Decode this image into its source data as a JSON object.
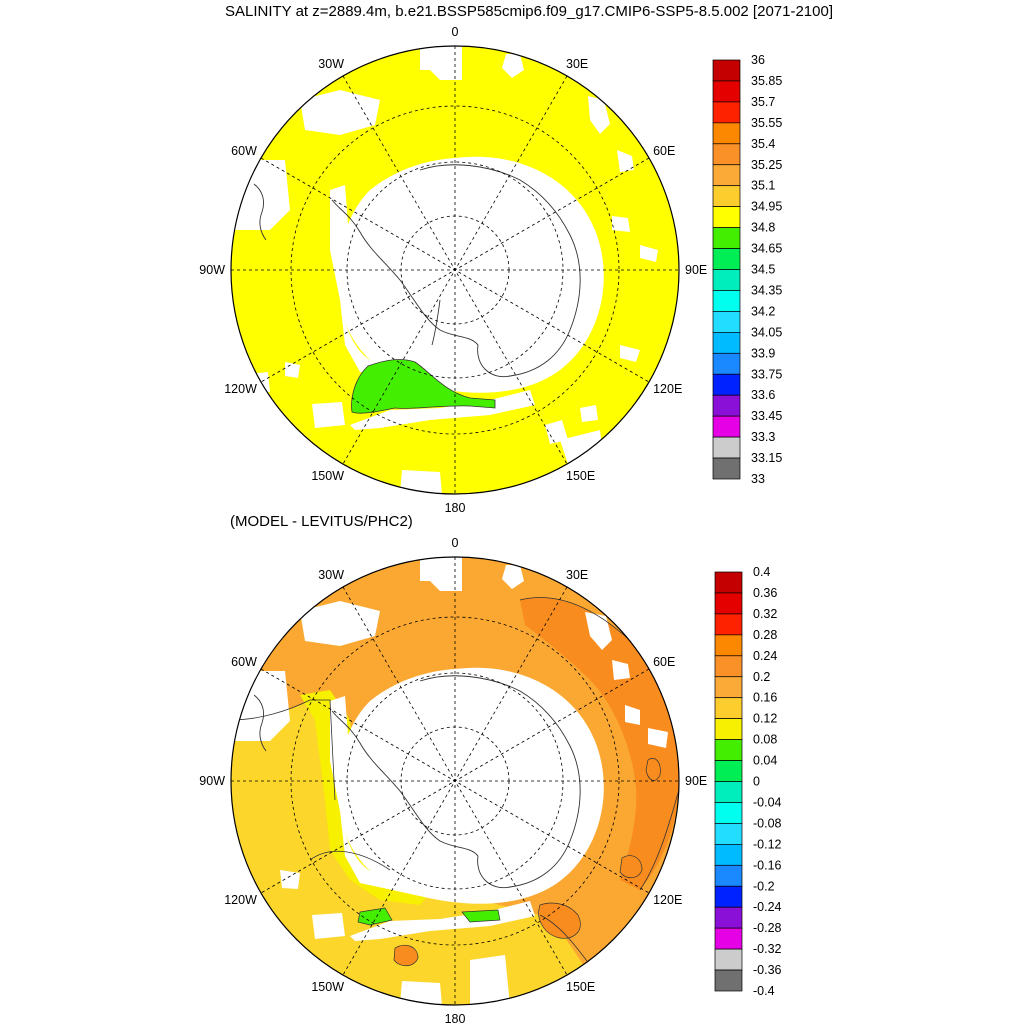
{
  "main_title": "SALINITY at z=2889.4m, b.e21.BSSP585cmip6.f09_g17.CMIP6-SSP5-8.5.002 [2071-2100]",
  "sub_title": "(MODEL - LEVITUS/PHC2)",
  "longitude_labels": [
    "0",
    "30E",
    "60E",
    "90E",
    "120E",
    "150E",
    "180",
    "150W",
    "120W",
    "90W",
    "60W",
    "30W"
  ],
  "colors": {
    "land": "#ffffff",
    "ocean_salinity": "#ffff00",
    "low_salinity": "#44ee00",
    "anomaly_main": "#fba832",
    "anomaly_high": "#f98c1e",
    "anomaly_low": "#fcd62a",
    "anomaly_yellow": "#f7f000",
    "anomaly_green": "#44ee00",
    "coast": "#333333",
    "grid": "#000000"
  },
  "map_top": {
    "colorbar_labels": [
      "36",
      "35.85",
      "35.7",
      "35.55",
      "35.4",
      "35.25",
      "35.1",
      "34.95",
      "34.8",
      "34.65",
      "34.5",
      "34.35",
      "34.2",
      "34.05",
      "33.9",
      "33.75",
      "33.6",
      "33.45",
      "33.3",
      "33.15",
      "33"
    ],
    "colorbar_colors": [
      "#c40000",
      "#e50000",
      "#ff2200",
      "#fb8800",
      "#f99128",
      "#fbaa38",
      "#fdcd2e",
      "#ffff00",
      "#44ee00",
      "#00ee55",
      "#00eebb",
      "#00ffee",
      "#22ddff",
      "#00bbff",
      "#1a88ff",
      "#0022ff",
      "#8a10d8",
      "#e600e6",
      "#cccccc",
      "#707070"
    ]
  },
  "map_bottom": {
    "colorbar_labels": [
      "0.4",
      "0.36",
      "0.32",
      "0.28",
      "0.24",
      "0.2",
      "0.16",
      "0.12",
      "0.08",
      "0.04",
      "0",
      "-0.04",
      "-0.08",
      "-0.12",
      "-0.16",
      "-0.2",
      "-0.24",
      "-0.28",
      "-0.32",
      "-0.36",
      "-0.4"
    ],
    "colorbar_colors": [
      "#c40000",
      "#e50000",
      "#ff2200",
      "#fb8800",
      "#f99128",
      "#fbaa38",
      "#fdcd2e",
      "#f7f000",
      "#44ee00",
      "#00ee55",
      "#00eebb",
      "#00ffee",
      "#22ddff",
      "#00bbff",
      "#1a88ff",
      "#0022ff",
      "#8a10d8",
      "#e600e6",
      "#cccccc",
      "#707070"
    ]
  }
}
